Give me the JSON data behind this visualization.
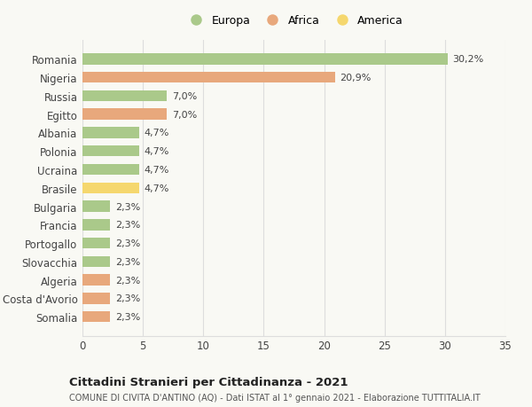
{
  "countries": [
    "Romania",
    "Nigeria",
    "Russia",
    "Egitto",
    "Albania",
    "Polonia",
    "Ucraina",
    "Brasile",
    "Bulgaria",
    "Francia",
    "Portogallo",
    "Slovacchia",
    "Algeria",
    "Costa d'Avorio",
    "Somalia"
  ],
  "values": [
    30.2,
    20.9,
    7.0,
    7.0,
    4.7,
    4.7,
    4.7,
    4.7,
    2.3,
    2.3,
    2.3,
    2.3,
    2.3,
    2.3,
    2.3
  ],
  "labels": [
    "30,2%",
    "20,9%",
    "7,0%",
    "7,0%",
    "4,7%",
    "4,7%",
    "4,7%",
    "4,7%",
    "2,3%",
    "2,3%",
    "2,3%",
    "2,3%",
    "2,3%",
    "2,3%",
    "2,3%"
  ],
  "continents": [
    "Europa",
    "Africa",
    "Europa",
    "Africa",
    "Europa",
    "Europa",
    "Europa",
    "America",
    "Europa",
    "Europa",
    "Europa",
    "Europa",
    "Africa",
    "Africa",
    "Africa"
  ],
  "colors": {
    "Europa": "#aac98a",
    "Africa": "#e8a87c",
    "America": "#f5d76e"
  },
  "legend_items": [
    "Europa",
    "Africa",
    "America"
  ],
  "legend_colors": [
    "#aac98a",
    "#e8a87c",
    "#f5d76e"
  ],
  "xlim": [
    0,
    35
  ],
  "xticks": [
    0,
    5,
    10,
    15,
    20,
    25,
    30,
    35
  ],
  "title": "Cittadini Stranieri per Cittadinanza - 2021",
  "subtitle": "COMUNE DI CIVITA D'ANTINO (AQ) - Dati ISTAT al 1° gennaio 2021 - Elaborazione TUTTITALIA.IT",
  "background_color": "#f9f9f4",
  "grid_color": "#dddddd",
  "bar_height": 0.6,
  "label_fontsize": 8,
  "ytick_fontsize": 8.5,
  "xtick_fontsize": 8.5
}
